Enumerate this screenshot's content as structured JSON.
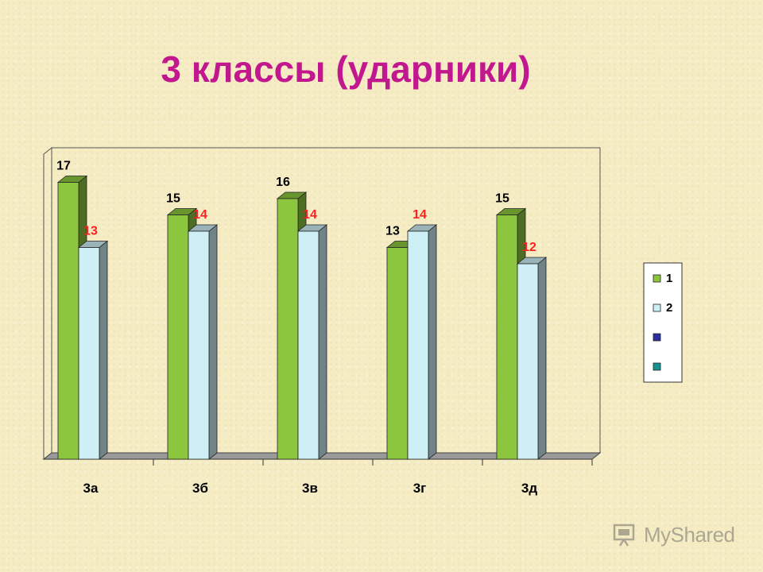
{
  "title": "3 классы (ударники)",
  "chart_data": {
    "type": "bar",
    "title": "3 классы (ударники)",
    "categories": [
      "3а",
      "3б",
      "3в",
      "3г",
      "3д"
    ],
    "series": [
      {
        "name": "1",
        "values": [
          17,
          15,
          16,
          13,
          15
        ],
        "color": "#8cc63f",
        "label_color": "#000000"
      },
      {
        "name": "2",
        "values": [
          13,
          14,
          14,
          14,
          12
        ],
        "color": "#cdeff5",
        "label_color": "#ff1f1f"
      }
    ],
    "legend_extra": [
      {
        "name": "",
        "color": "#2b2f9e"
      },
      {
        "name": "",
        "color": "#14938f"
      }
    ],
    "ylim": [
      0,
      17
    ],
    "grid": false,
    "legend_position": "right",
    "three_d": true
  },
  "watermark": {
    "text": "MyShared"
  }
}
